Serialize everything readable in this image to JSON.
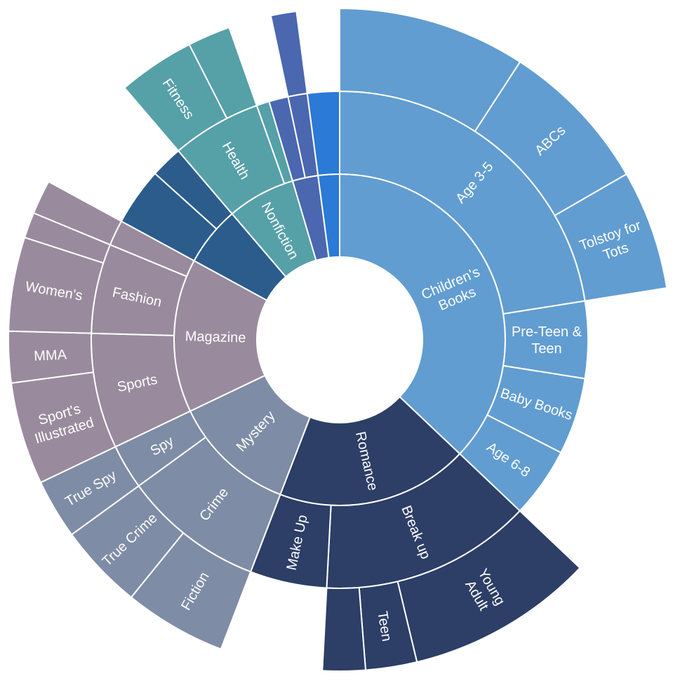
{
  "chart_data": {
    "type": "sunburst",
    "title": "",
    "unit": "",
    "start_angle_deg": 0,
    "direction": "clockwise",
    "categories": [
      {
        "name": "Children's Books",
        "label": "Children's\nBooks",
        "color": "#619dd1",
        "children": [
          {
            "name": "Age 3-5",
            "label": "Age 3-5",
            "children": [
              {
                "name": "",
                "label": "",
                "value": 22
              },
              {
                "name": "ABCs",
                "label": "ABCs",
                "value": 18
              },
              {
                "name": "Tolstoy for Tots",
                "label": "Tolstoy for\nTots",
                "value": 14
              }
            ]
          },
          {
            "name": "Pre-Teen & Teen",
            "label": "Pre-Teen &\nTeen",
            "value": 12
          },
          {
            "name": "Baby Books",
            "label": "Baby Books",
            "value": 12
          },
          {
            "name": "Age 6-8",
            "label": "Age 6-8",
            "value": 11
          }
        ]
      },
      {
        "name": "Romance",
        "label": "Romance",
        "color": "#2d3e67",
        "children": [
          {
            "name": "Break up",
            "label": "Break up",
            "children": [
              {
                "name": "Young Adult",
                "label": "Young\nAdult",
                "value": 22
              },
              {
                "name": "Teen",
                "label": "Teen",
                "value": 6
              },
              {
                "name": "",
                "label": "",
                "value": 5
              }
            ]
          },
          {
            "name": "Make Up",
            "label": "Make Up",
            "value": 12
          }
        ]
      },
      {
        "name": "Mystery",
        "label": "Mystery",
        "color": "#7f8ca6",
        "children": [
          {
            "name": "Crime",
            "label": "Crime",
            "children": [
              {
                "name": "Fiction",
                "label": "Fiction",
                "value": 12
              },
              {
                "name": "True Crime",
                "label": "True Crime",
                "value": 10
              }
            ]
          },
          {
            "name": "Spy",
            "label": "Spy",
            "children": [
              {
                "name": "True Spy",
                "label": "True Spy",
                "value": 7
              }
            ]
          }
        ]
      },
      {
        "name": "Magazine",
        "label": "Magazine",
        "color": "#998b9d",
        "children": [
          {
            "name": "Sports",
            "label": "Sports",
            "children": [
              {
                "name": "Sport's Illustrated",
                "label": "Sport's\nIllustrated",
                "value": 12
              },
              {
                "name": "MMA",
                "label": "MMA",
                "value": 6
              }
            ]
          },
          {
            "name": "Fashion",
            "label": "Fashion",
            "children": [
              {
                "name": "Women's",
                "label": "Women's",
                "value": 11
              },
              {
                "name": "",
                "label": "",
                "value": 3
              }
            ]
          },
          {
            "name": "",
            "label": "",
            "children": [
              {
                "name": "",
                "label": "",
                "value": 4
              }
            ]
          }
        ]
      },
      {
        "name": "",
        "label": "",
        "color": "#2b5c8c",
        "children": [
          {
            "name": "",
            "label": "",
            "value": 9
          },
          {
            "name": "",
            "label": "",
            "value": 5
          }
        ]
      },
      {
        "name": "Nonfiction",
        "label": "Nonfiction",
        "color": "#56a0a8",
        "children": [
          {
            "name": "Health",
            "label": "Health",
            "children": [
              {
                "name": "Fitness",
                "label": "Fitness",
                "value": 9
              },
              {
                "name": "",
                "label": "",
                "value": 5
              }
            ]
          },
          {
            "name": "",
            "label": "",
            "value": 2
          }
        ]
      },
      {
        "name": "",
        "label": "",
        "color": "#4a67b0",
        "children": [
          {
            "name": "",
            "label": "",
            "value": 3
          },
          {
            "name": "",
            "label": "",
            "children": [
              {
                "name": "",
                "label": "",
                "value": 3
              }
            ]
          }
        ]
      },
      {
        "name": "",
        "label": "",
        "color": "#2b7ad6",
        "children": [
          {
            "name": "",
            "label": "",
            "value": 5
          }
        ]
      }
    ]
  }
}
